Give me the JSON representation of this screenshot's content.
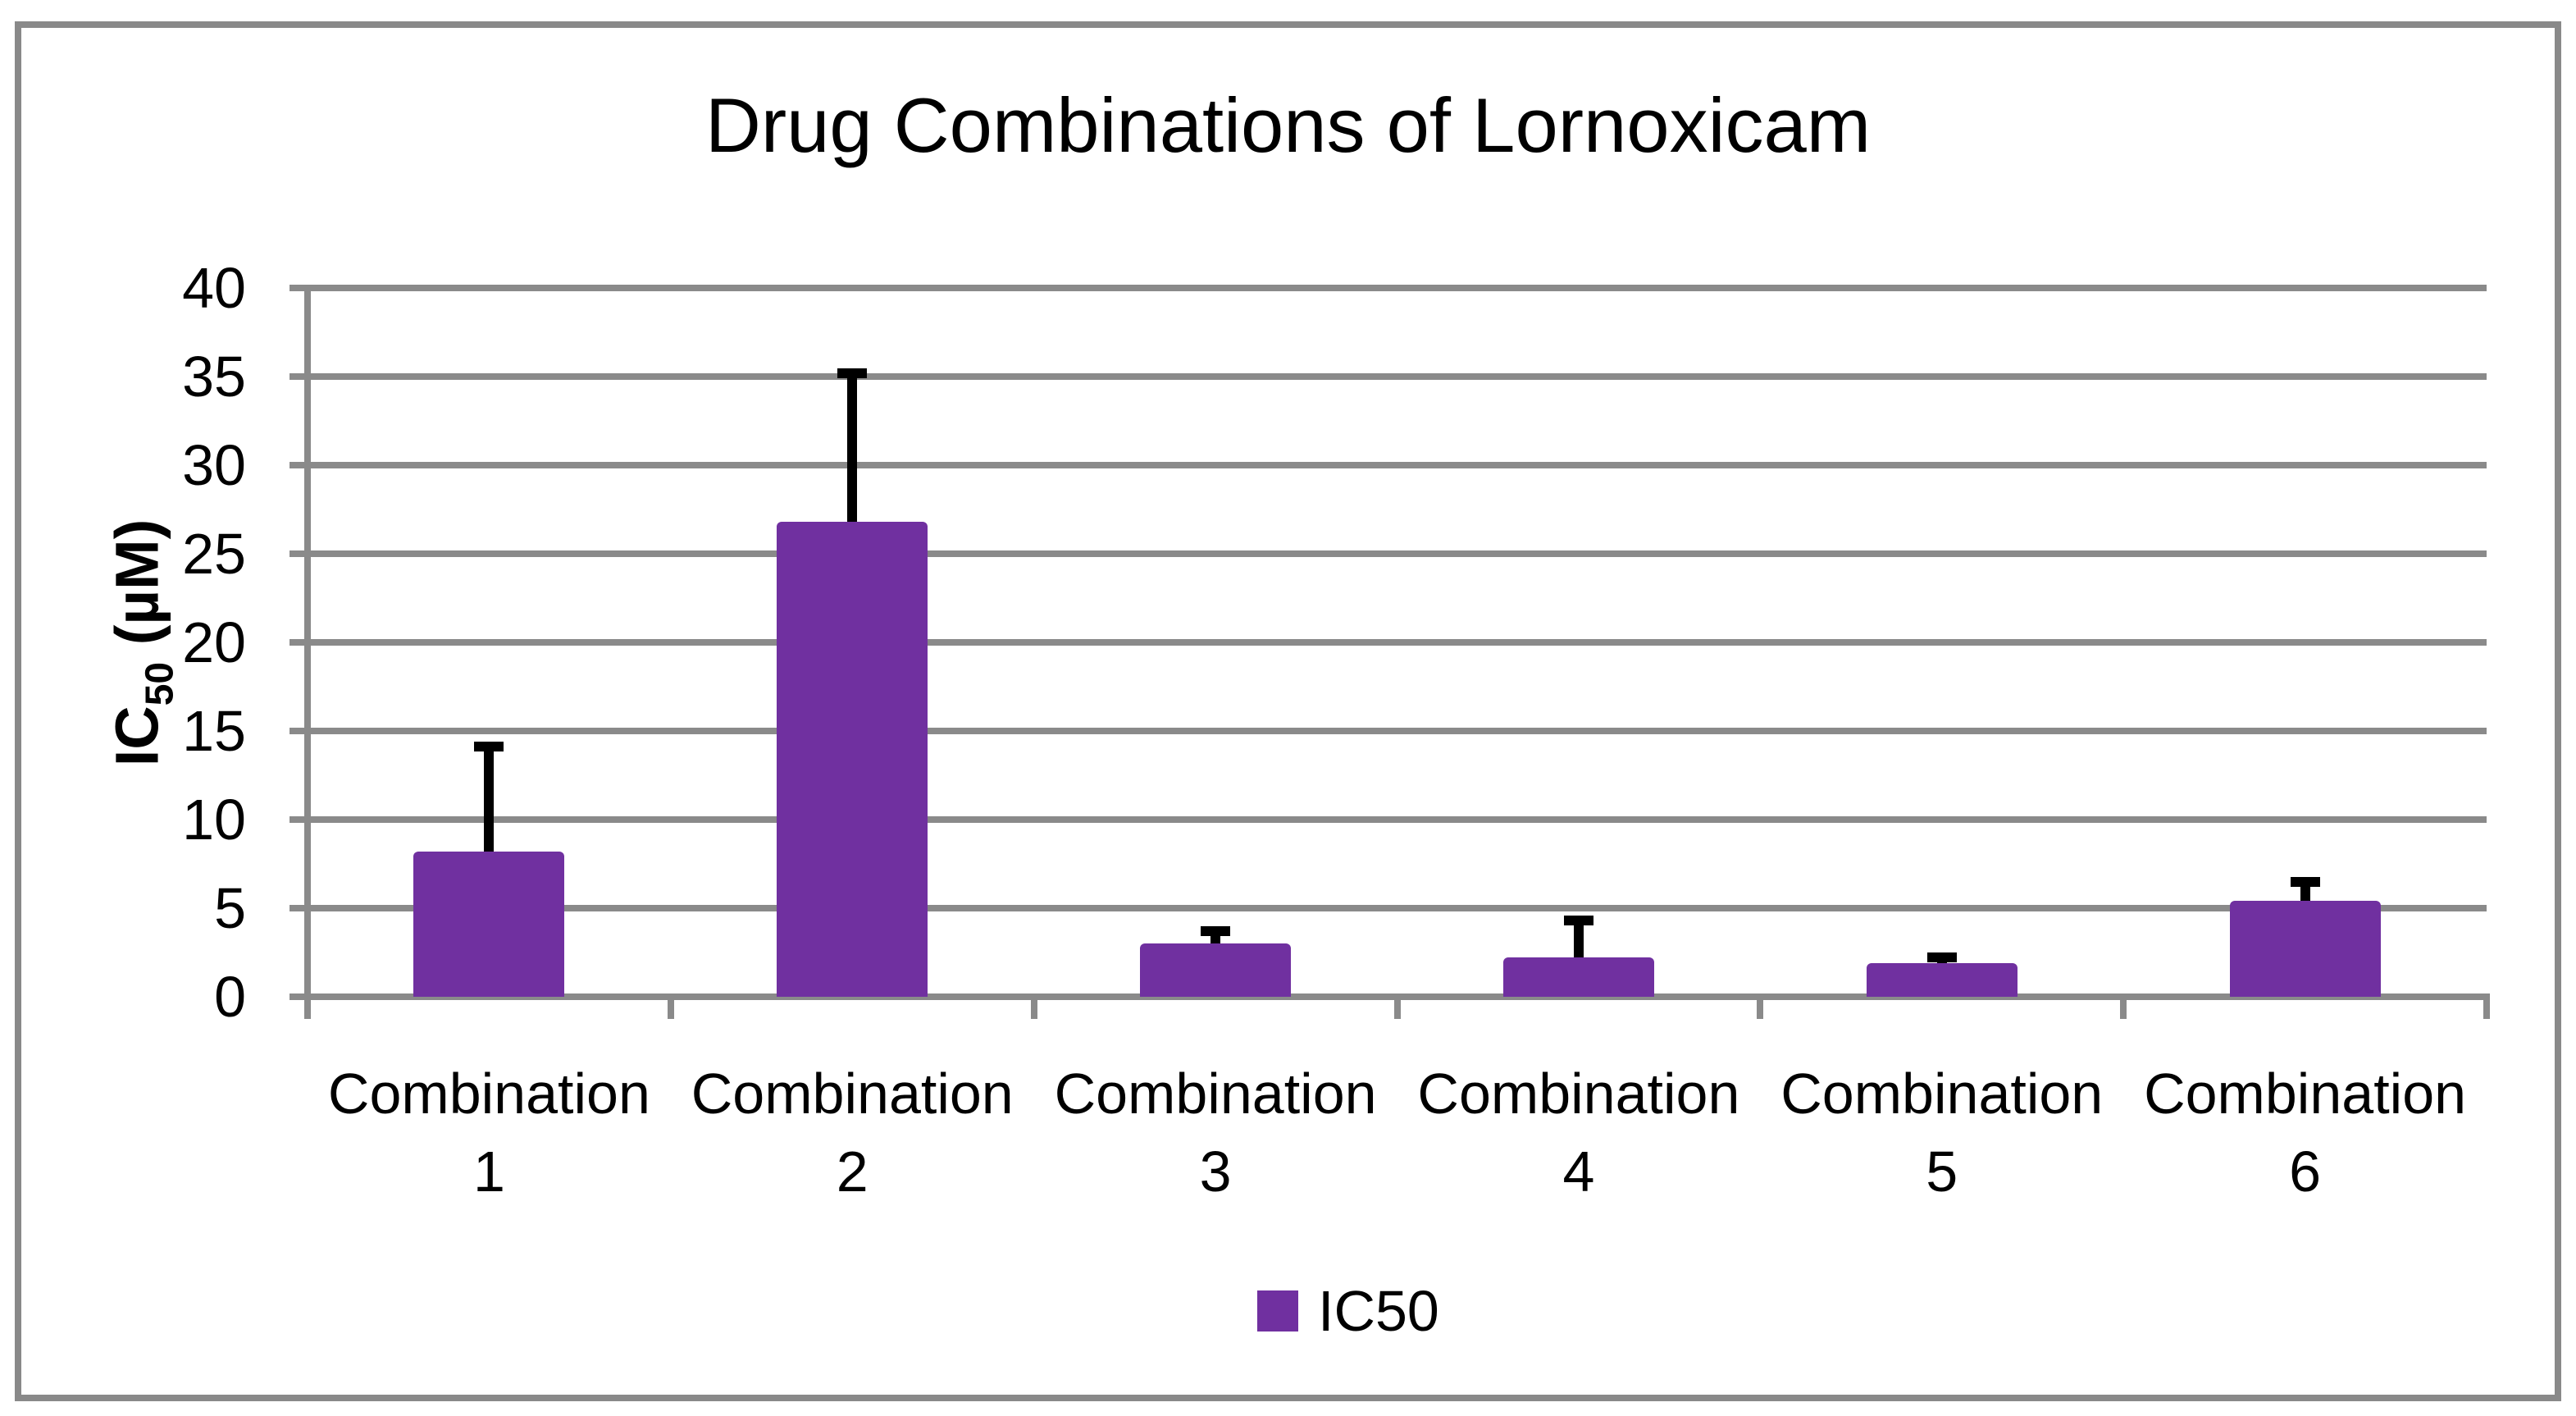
{
  "chart_data": {
    "type": "bar",
    "title": "Drug Combinations of Lornoxicam",
    "categories": [
      "Combination 1",
      "Combination 2",
      "Combination 3",
      "Combination 4",
      "Combination 5",
      "Combination 6"
    ],
    "series": [
      {
        "name": "IC50",
        "values": [
          8.2,
          26.8,
          3.0,
          2.2,
          1.9,
          5.4
        ],
        "error_bars_upper": [
          5.9,
          8.4,
          0.7,
          2.1,
          0.3,
          1.1
        ]
      }
    ],
    "xlabel": "",
    "ylabel": "IC50 (µM)",
    "ylabel_parts": {
      "main": "IC",
      "sub": "50",
      "unit": " (µM)"
    },
    "ylim": [
      0,
      40
    ],
    "ytick_step": 5,
    "yticks": [
      0,
      5,
      10,
      15,
      20,
      25,
      30,
      35,
      40
    ],
    "grid": "horizontal",
    "legend": {
      "position": "bottom",
      "label": "IC50"
    },
    "colors": {
      "bar": "#7030A0",
      "gridline": "#8a8a8a",
      "axis": "#8a8a8a",
      "error_bar": "#000000",
      "text": "#000000",
      "frame_border": "#898989"
    }
  }
}
